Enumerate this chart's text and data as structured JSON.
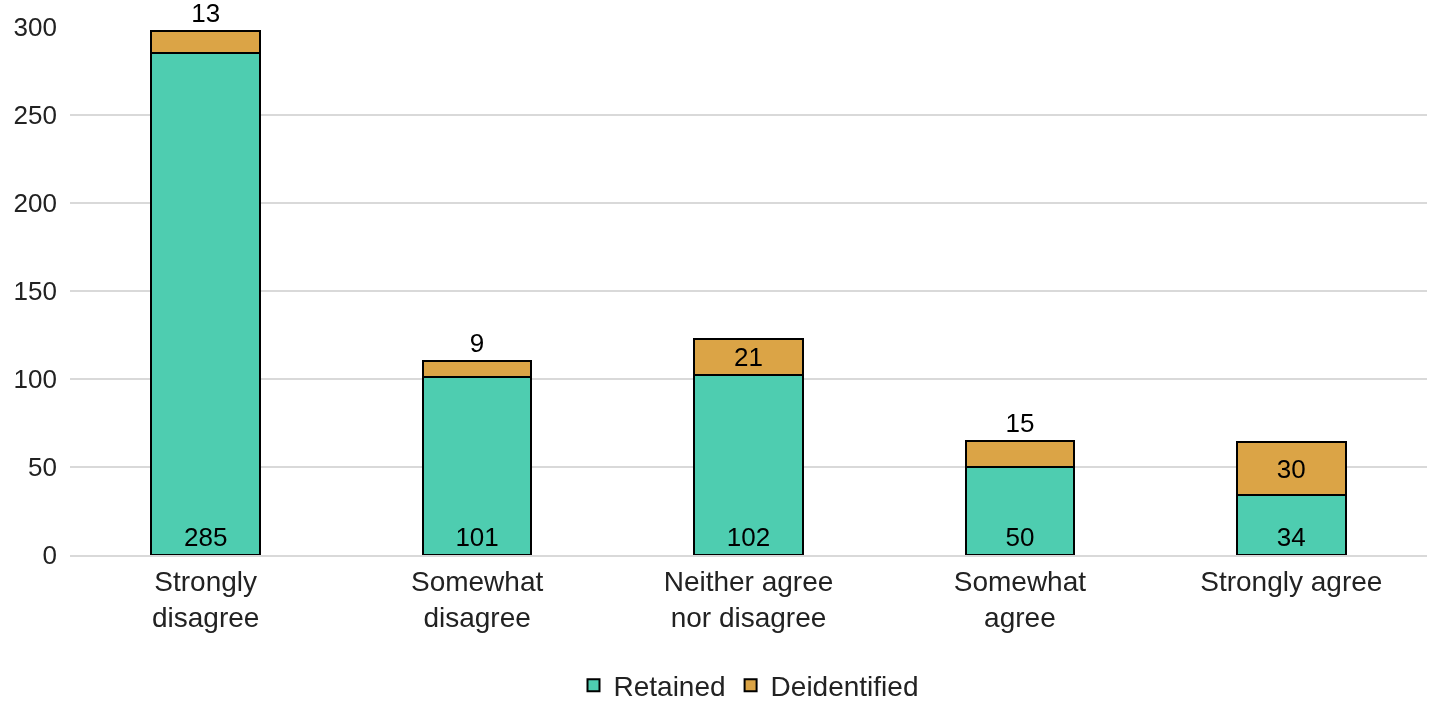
{
  "chart_data": {
    "type": "bar",
    "stacked": true,
    "categories": [
      "Strongly\ndisagree",
      "Somewhat\ndisagree",
      "Neither agree\nnor disagree",
      "Somewhat\nagree",
      "Strongly agree"
    ],
    "series": [
      {
        "name": "Retained",
        "color": "#4ecdb0",
        "values": [
          285,
          101,
          102,
          50,
          34
        ]
      },
      {
        "name": "Deidentified",
        "color": "#dba446",
        "values": [
          13,
          9,
          21,
          15,
          30
        ]
      }
    ],
    "ylim": [
      0,
      300
    ],
    "yticks": [
      0,
      50,
      100,
      150,
      200,
      250,
      300
    ],
    "grid": "y",
    "legend": "bottom",
    "data_labels": true
  }
}
